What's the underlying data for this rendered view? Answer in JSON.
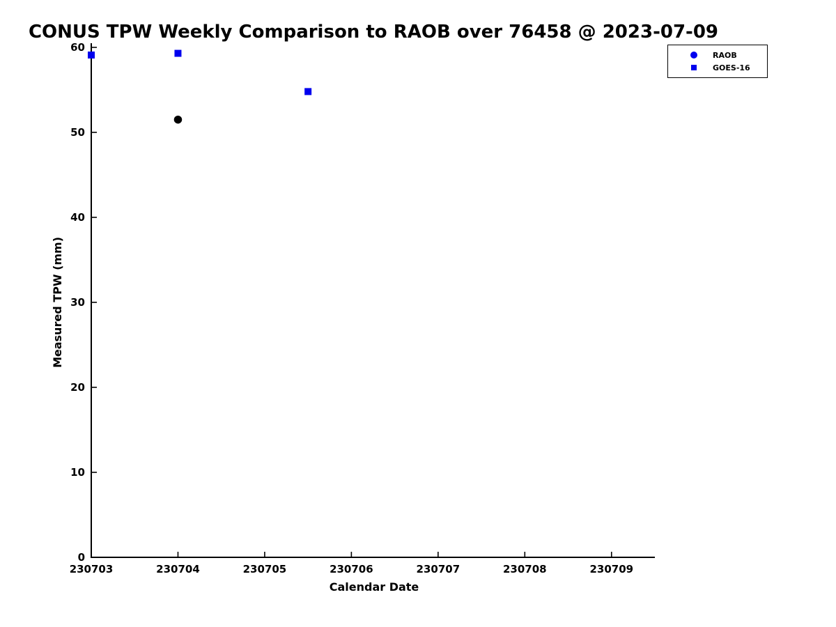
{
  "chart_data": {
    "type": "scatter",
    "title": "CONUS TPW Weekly Comparison to RAOB over 76458 @ 2023-07-09",
    "xlabel": "Calendar Date",
    "ylabel": "Measured TPW (mm)",
    "xlim": [
      230703,
      230709.5
    ],
    "ylim": [
      0,
      60
    ],
    "xticks": [
      230703,
      230704,
      230705,
      230706,
      230707,
      230708,
      230709
    ],
    "yticks": [
      0,
      10,
      20,
      30,
      40,
      50,
      60
    ],
    "grid": false,
    "axis_color": "#000000",
    "legend": {
      "position": "top-right",
      "entries": [
        "RAOB",
        "GOES-16"
      ]
    },
    "series": [
      {
        "name": "RAOB",
        "marker": "circle",
        "color": "#0000ee",
        "point_fill": "#000000",
        "point_edge": "#000000",
        "points": [
          {
            "x": 230704,
            "y": 51.5
          }
        ]
      },
      {
        "name": "GOES-16",
        "marker": "square",
        "color": "#0000ee",
        "point_fill": "#0000ee",
        "point_edge": "#0000ee",
        "points": [
          {
            "x": 230703,
            "y": 59.1
          },
          {
            "x": 230704,
            "y": 59.3
          },
          {
            "x": 230705.5,
            "y": 54.8
          }
        ]
      }
    ]
  }
}
